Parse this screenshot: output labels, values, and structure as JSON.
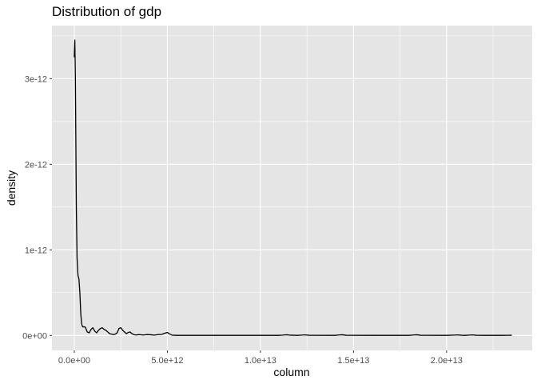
{
  "chart_data": {
    "type": "line",
    "title": "Distribution of gdp",
    "xlabel": "column",
    "ylabel": "density",
    "xlim": [
      -1200000000000.0,
      24600000000000.0
    ],
    "ylim": [
      -1.75e-13,
      3.62e-12
    ],
    "x_ticks": [
      {
        "value": 0,
        "label": "0.0e+00"
      },
      {
        "value": 5000000000000.0,
        "label": "5.0e+12"
      },
      {
        "value": 10000000000000.0,
        "label": "1.0e+13"
      },
      {
        "value": 15000000000000.0,
        "label": "1.5e+13"
      },
      {
        "value": 20000000000000.0,
        "label": "2.0e+13"
      }
    ],
    "y_ticks": [
      {
        "value": 0,
        "label": "0e+00"
      },
      {
        "value": 1e-12,
        "label": "1e-12"
      },
      {
        "value": 2e-12,
        "label": "2e-12"
      },
      {
        "value": 3e-12,
        "label": "3e-12"
      }
    ],
    "grid": true,
    "legend": "none",
    "colors": {
      "panel": "#e5e5e5",
      "grid": "#ffffff",
      "line": "#000000",
      "tick_text": "#4d4d4d"
    },
    "series": [
      {
        "x": [
          0,
          30000000000.0,
          60000000000.0,
          110000000000.0,
          150000000000.0,
          200000000000.0,
          250000000000.0,
          300000000000.0,
          350000000000.0,
          400000000000.0,
          450000000000.0,
          500000000000.0,
          550000000000.0,
          600000000000.0,
          650000000000.0,
          700000000000.0,
          800000000000.0,
          900000000000.0,
          1000000000000.0,
          1100000000000.0,
          1200000000000.0,
          1300000000000.0,
          1400000000000.0,
          1500000000000.0,
          1600000000000.0,
          1700000000000.0,
          1800000000000.0,
          1900000000000.0,
          2000000000000.0,
          2100000000000.0,
          2200000000000.0,
          2300000000000.0,
          2400000000000.0,
          2500000000000.0,
          2600000000000.0,
          2700000000000.0,
          2800000000000.0,
          2900000000000.0,
          3000000000000.0,
          3100000000000.0,
          3200000000000.0,
          3300000000000.0,
          3400000000000.0,
          3500000000000.0,
          3700000000000.0,
          3900000000000.0,
          4100000000000.0,
          4300000000000.0,
          4500000000000.0,
          4700000000000.0,
          4850000000000.0,
          5000000000000.0,
          5100000000000.0,
          5250000000000.0,
          5500000000000.0,
          7000000000000.0,
          9000000000000.0,
          11000000000000.0,
          11200000000000.0,
          11400000000000.0,
          11600000000000.0,
          12000000000000.0,
          12200000000000.0,
          12400000000000.0,
          12600000000000.0,
          14000000000000.0,
          14200000000000.0,
          14400000000000.0,
          14600000000000.0,
          16000000000000.0,
          18000000000000.0,
          18200000000000.0,
          18400000000000.0,
          18600000000000.0,
          20000000000000.0,
          20400000000000.0,
          20600000000000.0,
          20800000000000.0,
          21000000000000.0,
          21200000000000.0,
          21400000000000.0,
          21600000000000.0,
          22000000000000.0,
          23000000000000.0,
          23500000000000.0
        ],
        "y": [
          3.25e-12,
          3.45e-12,
          3e-12,
          1.5e-12,
          9e-13,
          7e-13,
          6.6e-13,
          5e-13,
          2.5e-13,
          1.3e-13,
          1e-13,
          1e-13,
          1e-13,
          9.5e-14,
          6.5e-14,
          4e-14,
          3e-14,
          7e-14,
          9e-14,
          5e-14,
          3e-14,
          6e-14,
          8e-14,
          9e-14,
          7e-14,
          6e-14,
          4e-14,
          2e-14,
          1.5e-14,
          1e-14,
          1.5e-14,
          3e-14,
          8e-14,
          9e-14,
          6e-14,
          4e-14,
          2e-14,
          3.5e-14,
          4e-14,
          2e-14,
          1e-14,
          5e-15,
          8e-15,
          1e-14,
          5e-15,
          1e-14,
          8e-15,
          4e-15,
          1e-14,
          1.2e-14,
          2.5e-14,
          3.5e-14,
          2e-14,
          3e-15,
          1e-15,
          1e-15,
          1e-15,
          1e-15,
          4e-15,
          8e-15,
          3e-15,
          1e-15,
          4e-15,
          6e-15,
          2e-15,
          1e-15,
          5e-15,
          8e-15,
          2e-15,
          1e-15,
          1e-15,
          5e-15,
          8e-15,
          2e-15,
          1e-15,
          4e-15,
          6e-15,
          2e-15,
          1e-15,
          4e-15,
          6e-15,
          2e-15,
          1e-15,
          1e-15,
          2e-15
        ]
      }
    ]
  }
}
